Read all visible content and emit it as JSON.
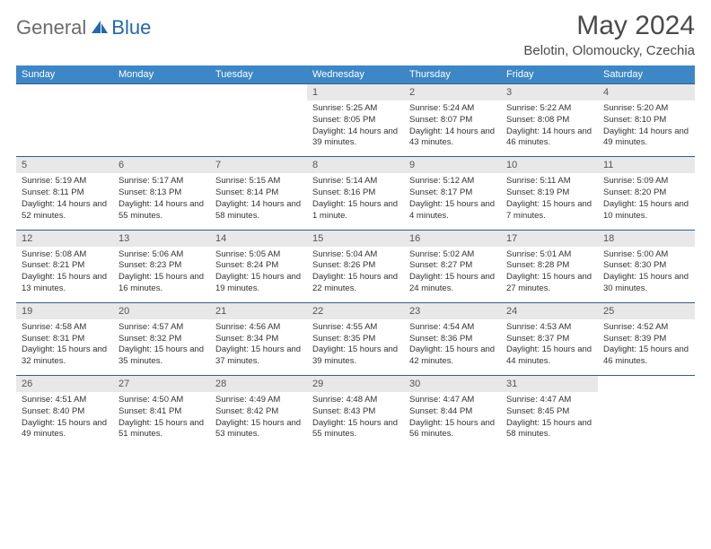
{
  "brand": {
    "part1": "General",
    "part2": "Blue"
  },
  "title": "May 2024",
  "location": "Belotin, Olomoucky, Czechia",
  "colors": {
    "header_bg": "#3d87c7",
    "header_fg": "#ffffff",
    "daynum_bg": "#e8e8e8",
    "row_border": "#2d5f8f",
    "logo_gray": "#6b6b6b",
    "logo_blue": "#2268a9"
  },
  "weekdays": [
    "Sunday",
    "Monday",
    "Tuesday",
    "Wednesday",
    "Thursday",
    "Friday",
    "Saturday"
  ],
  "weeks": [
    [
      {
        "n": "",
        "sr": "",
        "ss": "",
        "dl": ""
      },
      {
        "n": "",
        "sr": "",
        "ss": "",
        "dl": ""
      },
      {
        "n": "",
        "sr": "",
        "ss": "",
        "dl": ""
      },
      {
        "n": "1",
        "sr": "Sunrise: 5:25 AM",
        "ss": "Sunset: 8:05 PM",
        "dl": "Daylight: 14 hours and 39 minutes."
      },
      {
        "n": "2",
        "sr": "Sunrise: 5:24 AM",
        "ss": "Sunset: 8:07 PM",
        "dl": "Daylight: 14 hours and 43 minutes."
      },
      {
        "n": "3",
        "sr": "Sunrise: 5:22 AM",
        "ss": "Sunset: 8:08 PM",
        "dl": "Daylight: 14 hours and 46 minutes."
      },
      {
        "n": "4",
        "sr": "Sunrise: 5:20 AM",
        "ss": "Sunset: 8:10 PM",
        "dl": "Daylight: 14 hours and 49 minutes."
      }
    ],
    [
      {
        "n": "5",
        "sr": "Sunrise: 5:19 AM",
        "ss": "Sunset: 8:11 PM",
        "dl": "Daylight: 14 hours and 52 minutes."
      },
      {
        "n": "6",
        "sr": "Sunrise: 5:17 AM",
        "ss": "Sunset: 8:13 PM",
        "dl": "Daylight: 14 hours and 55 minutes."
      },
      {
        "n": "7",
        "sr": "Sunrise: 5:15 AM",
        "ss": "Sunset: 8:14 PM",
        "dl": "Daylight: 14 hours and 58 minutes."
      },
      {
        "n": "8",
        "sr": "Sunrise: 5:14 AM",
        "ss": "Sunset: 8:16 PM",
        "dl": "Daylight: 15 hours and 1 minute."
      },
      {
        "n": "9",
        "sr": "Sunrise: 5:12 AM",
        "ss": "Sunset: 8:17 PM",
        "dl": "Daylight: 15 hours and 4 minutes."
      },
      {
        "n": "10",
        "sr": "Sunrise: 5:11 AM",
        "ss": "Sunset: 8:19 PM",
        "dl": "Daylight: 15 hours and 7 minutes."
      },
      {
        "n": "11",
        "sr": "Sunrise: 5:09 AM",
        "ss": "Sunset: 8:20 PM",
        "dl": "Daylight: 15 hours and 10 minutes."
      }
    ],
    [
      {
        "n": "12",
        "sr": "Sunrise: 5:08 AM",
        "ss": "Sunset: 8:21 PM",
        "dl": "Daylight: 15 hours and 13 minutes."
      },
      {
        "n": "13",
        "sr": "Sunrise: 5:06 AM",
        "ss": "Sunset: 8:23 PM",
        "dl": "Daylight: 15 hours and 16 minutes."
      },
      {
        "n": "14",
        "sr": "Sunrise: 5:05 AM",
        "ss": "Sunset: 8:24 PM",
        "dl": "Daylight: 15 hours and 19 minutes."
      },
      {
        "n": "15",
        "sr": "Sunrise: 5:04 AM",
        "ss": "Sunset: 8:26 PM",
        "dl": "Daylight: 15 hours and 22 minutes."
      },
      {
        "n": "16",
        "sr": "Sunrise: 5:02 AM",
        "ss": "Sunset: 8:27 PM",
        "dl": "Daylight: 15 hours and 24 minutes."
      },
      {
        "n": "17",
        "sr": "Sunrise: 5:01 AM",
        "ss": "Sunset: 8:28 PM",
        "dl": "Daylight: 15 hours and 27 minutes."
      },
      {
        "n": "18",
        "sr": "Sunrise: 5:00 AM",
        "ss": "Sunset: 8:30 PM",
        "dl": "Daylight: 15 hours and 30 minutes."
      }
    ],
    [
      {
        "n": "19",
        "sr": "Sunrise: 4:58 AM",
        "ss": "Sunset: 8:31 PM",
        "dl": "Daylight: 15 hours and 32 minutes."
      },
      {
        "n": "20",
        "sr": "Sunrise: 4:57 AM",
        "ss": "Sunset: 8:32 PM",
        "dl": "Daylight: 15 hours and 35 minutes."
      },
      {
        "n": "21",
        "sr": "Sunrise: 4:56 AM",
        "ss": "Sunset: 8:34 PM",
        "dl": "Daylight: 15 hours and 37 minutes."
      },
      {
        "n": "22",
        "sr": "Sunrise: 4:55 AM",
        "ss": "Sunset: 8:35 PM",
        "dl": "Daylight: 15 hours and 39 minutes."
      },
      {
        "n": "23",
        "sr": "Sunrise: 4:54 AM",
        "ss": "Sunset: 8:36 PM",
        "dl": "Daylight: 15 hours and 42 minutes."
      },
      {
        "n": "24",
        "sr": "Sunrise: 4:53 AM",
        "ss": "Sunset: 8:37 PM",
        "dl": "Daylight: 15 hours and 44 minutes."
      },
      {
        "n": "25",
        "sr": "Sunrise: 4:52 AM",
        "ss": "Sunset: 8:39 PM",
        "dl": "Daylight: 15 hours and 46 minutes."
      }
    ],
    [
      {
        "n": "26",
        "sr": "Sunrise: 4:51 AM",
        "ss": "Sunset: 8:40 PM",
        "dl": "Daylight: 15 hours and 49 minutes."
      },
      {
        "n": "27",
        "sr": "Sunrise: 4:50 AM",
        "ss": "Sunset: 8:41 PM",
        "dl": "Daylight: 15 hours and 51 minutes."
      },
      {
        "n": "28",
        "sr": "Sunrise: 4:49 AM",
        "ss": "Sunset: 8:42 PM",
        "dl": "Daylight: 15 hours and 53 minutes."
      },
      {
        "n": "29",
        "sr": "Sunrise: 4:48 AM",
        "ss": "Sunset: 8:43 PM",
        "dl": "Daylight: 15 hours and 55 minutes."
      },
      {
        "n": "30",
        "sr": "Sunrise: 4:47 AM",
        "ss": "Sunset: 8:44 PM",
        "dl": "Daylight: 15 hours and 56 minutes."
      },
      {
        "n": "31",
        "sr": "Sunrise: 4:47 AM",
        "ss": "Sunset: 8:45 PM",
        "dl": "Daylight: 15 hours and 58 minutes."
      },
      {
        "n": "",
        "sr": "",
        "ss": "",
        "dl": ""
      }
    ]
  ]
}
